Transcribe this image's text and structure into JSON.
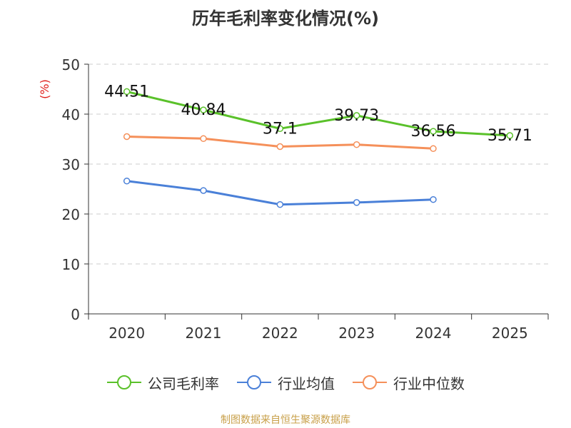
{
  "chart_data": {
    "type": "line",
    "title": "历年毛利率变化情况(%)",
    "ylabel": "(%)",
    "xlabel": "",
    "ylim": [
      0,
      50
    ],
    "yticks": [
      0,
      10,
      20,
      30,
      40,
      50
    ],
    "categories": [
      "2020",
      "2021",
      "2022",
      "2023",
      "2024",
      "2025"
    ],
    "grid": true,
    "legend_position": "bottom",
    "series": [
      {
        "name": "公司毛利率",
        "color": "#5ac12a",
        "values": [
          44.51,
          40.84,
          37.1,
          39.73,
          36.56,
          35.71
        ],
        "labels": [
          "44.51",
          "40.84",
          "37.1",
          "39.73",
          "36.56",
          "35.71"
        ]
      },
      {
        "name": "行业均值",
        "color": "#4a80d8",
        "values": [
          26.6,
          24.7,
          21.9,
          22.3,
          22.9,
          null
        ],
        "labels": []
      },
      {
        "name": "行业中位数",
        "color": "#f5905a",
        "values": [
          35.5,
          35.1,
          33.5,
          33.9,
          33.1,
          null
        ],
        "labels": []
      }
    ]
  },
  "footer": {
    "source": "制图数据来自恒生聚源数据库"
  }
}
